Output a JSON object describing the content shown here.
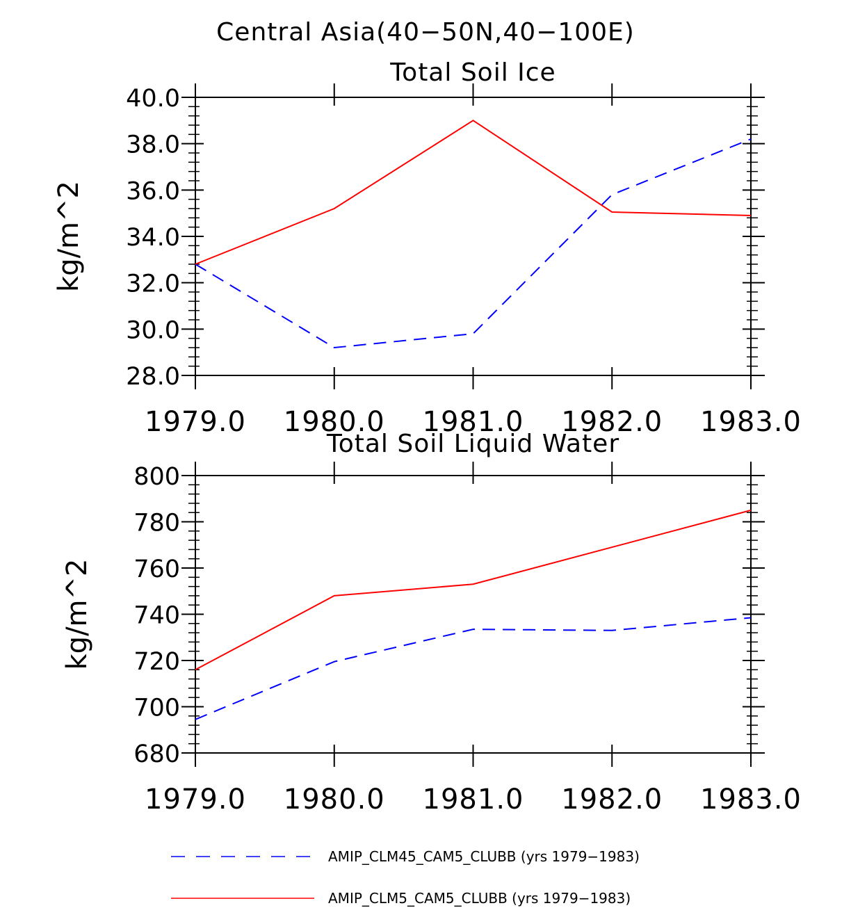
{
  "figure_title": "Central Asia(40−50N,40−100E)",
  "colors": {
    "clm45": "#0000ff",
    "clm5": "#ff0000",
    "axes": "#000000"
  },
  "legend": [
    {
      "label": "AMIP_CLM45_CAM5_CLUBB (yrs 1979−1983)",
      "color": "#0000ff",
      "style": "dashed"
    },
    {
      "label": "AMIP_CLM5_CAM5_CLUBB (yrs 1979−1983)",
      "color": "#ff0000",
      "style": "solid"
    }
  ],
  "chart_data": [
    {
      "type": "line",
      "title": "Total Soil Ice",
      "xlabel": "",
      "ylabel": "kg/m^2",
      "x": [
        1979,
        1980,
        1981,
        1982,
        1983
      ],
      "xticks": [
        "1979.0",
        "1980.0",
        "1981.0",
        "1982.0",
        "1983.0"
      ],
      "ylim": [
        28,
        40
      ],
      "yticks": [
        "28.0",
        "30.0",
        "32.0",
        "34.0",
        "36.0",
        "38.0",
        "40.0"
      ],
      "series": [
        {
          "name": "AMIP_CLM45_CAM5_CLUBB (yrs 1979−1983)",
          "color": "#0000ff",
          "style": "dashed",
          "values": [
            32.8,
            29.2,
            29.8,
            35.8,
            38.2
          ]
        },
        {
          "name": "AMIP_CLM5_CAM5_CLUBB (yrs 1979−1983)",
          "color": "#ff0000",
          "style": "solid",
          "values": [
            32.8,
            35.2,
            39.0,
            35.05,
            34.9
          ]
        }
      ]
    },
    {
      "type": "line",
      "title": "Total Soil Liquid Water",
      "xlabel": "",
      "ylabel": "kg/m^2",
      "x": [
        1979,
        1980,
        1981,
        1982,
        1983
      ],
      "xticks": [
        "1979.0",
        "1980.0",
        "1981.0",
        "1982.0",
        "1983.0"
      ],
      "ylim": [
        680,
        800
      ],
      "yticks": [
        "680",
        "700",
        "720",
        "740",
        "760",
        "780",
        "800"
      ],
      "series": [
        {
          "name": "AMIP_CLM45_CAM5_CLUBB (yrs 1979−1983)",
          "color": "#0000ff",
          "style": "dashed",
          "values": [
            694.5,
            719.5,
            733.5,
            733.0,
            738.5
          ]
        },
        {
          "name": "AMIP_CLM5_CAM5_CLUBB (yrs 1979−1983)",
          "color": "#ff0000",
          "style": "solid",
          "values": [
            716.0,
            748.0,
            753.0,
            769.0,
            785.0
          ]
        }
      ]
    }
  ]
}
